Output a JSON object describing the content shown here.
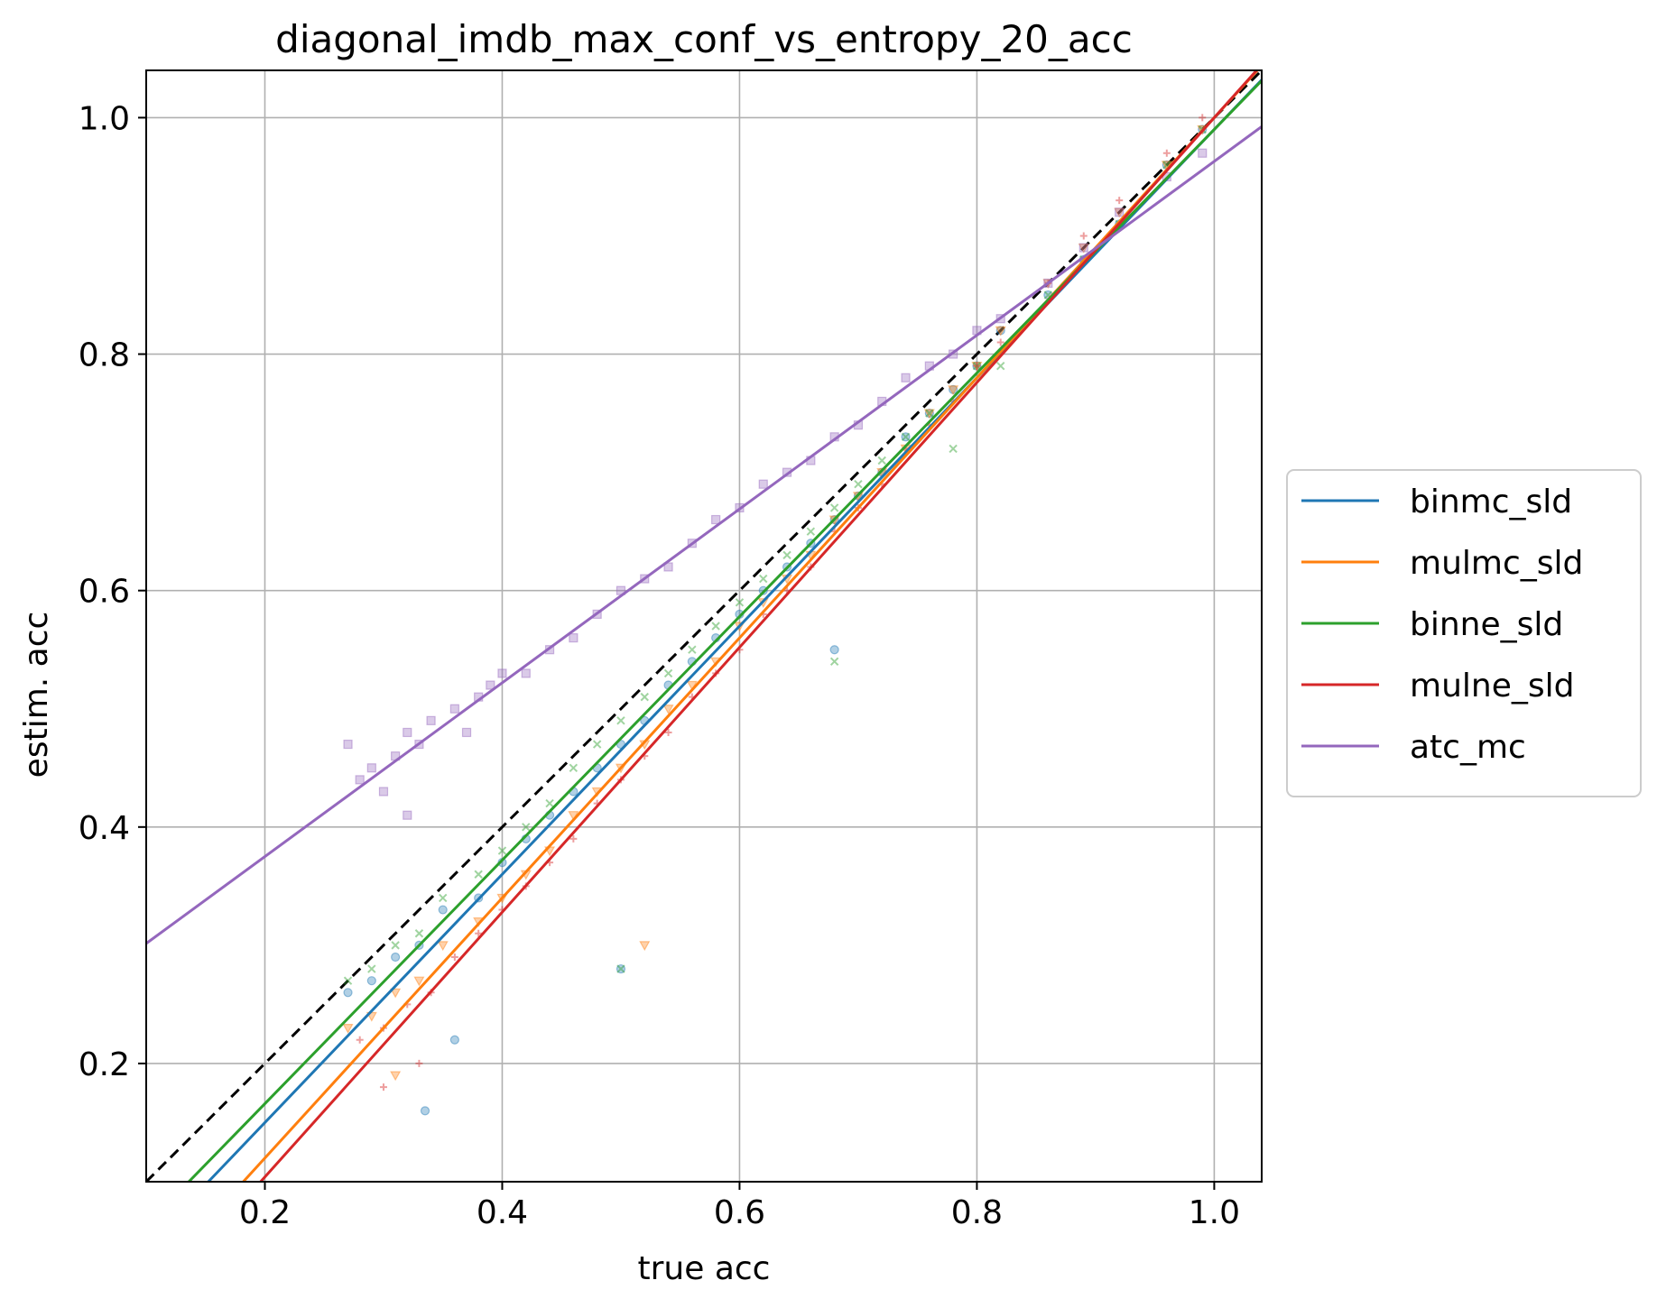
{
  "chart_data": {
    "type": "scatter",
    "title": "diagonal_imdb_max_conf_vs_entropy_20_acc",
    "xlabel": "true acc",
    "ylabel": "estim. acc",
    "xlim": [
      0.1,
      1.04
    ],
    "ylim": [
      0.1,
      1.04
    ],
    "xticks": [
      0.2,
      0.4,
      0.6,
      0.8,
      1.0
    ],
    "yticks": [
      0.2,
      0.4,
      0.6,
      0.8,
      1.0
    ],
    "xtick_labels": [
      "0.2",
      "0.4",
      "0.6",
      "0.8",
      "1.0"
    ],
    "ytick_labels": [
      "0.2",
      "0.4",
      "0.6",
      "0.8",
      "1.0"
    ],
    "grid": true,
    "legend_position": "outside-right",
    "reference_line": {
      "style": "dashed",
      "color": "#000000",
      "slope": 1.0,
      "intercept": 0.0
    },
    "series": [
      {
        "name": "binmc_sld",
        "color": "#1f77b4",
        "marker": "circle",
        "fit": {
          "slope": 1.05,
          "intercept": -0.06
        },
        "points": [
          [
            0.27,
            0.26
          ],
          [
            0.29,
            0.27
          ],
          [
            0.31,
            0.29
          ],
          [
            0.33,
            0.3
          ],
          [
            0.35,
            0.33
          ],
          [
            0.38,
            0.34
          ],
          [
            0.4,
            0.37
          ],
          [
            0.42,
            0.39
          ],
          [
            0.44,
            0.41
          ],
          [
            0.46,
            0.43
          ],
          [
            0.48,
            0.45
          ],
          [
            0.5,
            0.47
          ],
          [
            0.52,
            0.49
          ],
          [
            0.54,
            0.52
          ],
          [
            0.56,
            0.54
          ],
          [
            0.58,
            0.56
          ],
          [
            0.6,
            0.58
          ],
          [
            0.62,
            0.6
          ],
          [
            0.64,
            0.62
          ],
          [
            0.66,
            0.64
          ],
          [
            0.68,
            0.66
          ],
          [
            0.7,
            0.68
          ],
          [
            0.72,
            0.7
          ],
          [
            0.74,
            0.73
          ],
          [
            0.76,
            0.75
          ],
          [
            0.78,
            0.77
          ],
          [
            0.8,
            0.79
          ],
          [
            0.82,
            0.82
          ],
          [
            0.86,
            0.85
          ],
          [
            0.89,
            0.88
          ],
          [
            0.92,
            0.91
          ],
          [
            0.96,
            0.96
          ],
          [
            0.99,
            0.99
          ],
          [
            0.335,
            0.16
          ],
          [
            0.5,
            0.28
          ],
          [
            0.68,
            0.55
          ],
          [
            0.36,
            0.22
          ]
        ]
      },
      {
        "name": "mulmc_sld",
        "color": "#ff7f0e",
        "marker": "triangle",
        "fit": {
          "slope": 1.1,
          "intercept": -0.1
        },
        "points": [
          [
            0.27,
            0.23
          ],
          [
            0.29,
            0.24
          ],
          [
            0.31,
            0.26
          ],
          [
            0.33,
            0.27
          ],
          [
            0.35,
            0.3
          ],
          [
            0.38,
            0.32
          ],
          [
            0.4,
            0.34
          ],
          [
            0.42,
            0.36
          ],
          [
            0.44,
            0.38
          ],
          [
            0.46,
            0.41
          ],
          [
            0.48,
            0.43
          ],
          [
            0.5,
            0.45
          ],
          [
            0.52,
            0.47
          ],
          [
            0.54,
            0.5
          ],
          [
            0.56,
            0.52
          ],
          [
            0.58,
            0.54
          ],
          [
            0.6,
            0.57
          ],
          [
            0.62,
            0.59
          ],
          [
            0.64,
            0.61
          ],
          [
            0.66,
            0.63
          ],
          [
            0.68,
            0.66
          ],
          [
            0.7,
            0.68
          ],
          [
            0.72,
            0.7
          ],
          [
            0.74,
            0.72
          ],
          [
            0.76,
            0.75
          ],
          [
            0.78,
            0.77
          ],
          [
            0.8,
            0.79
          ],
          [
            0.82,
            0.82
          ],
          [
            0.86,
            0.86
          ],
          [
            0.89,
            0.89
          ],
          [
            0.92,
            0.92
          ],
          [
            0.96,
            0.96
          ],
          [
            0.99,
            0.99
          ],
          [
            0.31,
            0.19
          ],
          [
            0.52,
            0.3
          ]
        ]
      },
      {
        "name": "binne_sld",
        "color": "#2ca02c",
        "marker": "x",
        "fit": {
          "slope": 1.03,
          "intercept": -0.04
        },
        "points": [
          [
            0.27,
            0.27
          ],
          [
            0.29,
            0.28
          ],
          [
            0.31,
            0.3
          ],
          [
            0.33,
            0.31
          ],
          [
            0.35,
            0.34
          ],
          [
            0.38,
            0.36
          ],
          [
            0.4,
            0.38
          ],
          [
            0.42,
            0.4
          ],
          [
            0.44,
            0.42
          ],
          [
            0.46,
            0.45
          ],
          [
            0.48,
            0.47
          ],
          [
            0.5,
            0.49
          ],
          [
            0.52,
            0.51
          ],
          [
            0.54,
            0.53
          ],
          [
            0.56,
            0.55
          ],
          [
            0.58,
            0.57
          ],
          [
            0.6,
            0.59
          ],
          [
            0.62,
            0.61
          ],
          [
            0.64,
            0.63
          ],
          [
            0.66,
            0.65
          ],
          [
            0.68,
            0.67
          ],
          [
            0.7,
            0.69
          ],
          [
            0.72,
            0.71
          ],
          [
            0.74,
            0.73
          ],
          [
            0.76,
            0.75
          ],
          [
            0.78,
            0.72
          ],
          [
            0.8,
            0.79
          ],
          [
            0.82,
            0.79
          ],
          [
            0.86,
            0.85
          ],
          [
            0.89,
            0.88
          ],
          [
            0.92,
            0.91
          ],
          [
            0.96,
            0.96
          ],
          [
            0.99,
            0.99
          ],
          [
            0.5,
            0.28
          ],
          [
            0.68,
            0.54
          ]
        ]
      },
      {
        "name": "mulne_sld",
        "color": "#d62728",
        "marker": "plus",
        "fit": {
          "slope": 1.12,
          "intercept": -0.12
        },
        "points": [
          [
            0.28,
            0.22
          ],
          [
            0.3,
            0.23
          ],
          [
            0.32,
            0.25
          ],
          [
            0.34,
            0.26
          ],
          [
            0.36,
            0.29
          ],
          [
            0.38,
            0.31
          ],
          [
            0.4,
            0.33
          ],
          [
            0.42,
            0.35
          ],
          [
            0.44,
            0.37
          ],
          [
            0.46,
            0.39
          ],
          [
            0.48,
            0.42
          ],
          [
            0.5,
            0.44
          ],
          [
            0.52,
            0.46
          ],
          [
            0.54,
            0.48
          ],
          [
            0.56,
            0.51
          ],
          [
            0.58,
            0.53
          ],
          [
            0.6,
            0.55
          ],
          [
            0.62,
            0.58
          ],
          [
            0.64,
            0.6
          ],
          [
            0.66,
            0.62
          ],
          [
            0.68,
            0.65
          ],
          [
            0.7,
            0.67
          ],
          [
            0.72,
            0.69
          ],
          [
            0.74,
            0.72
          ],
          [
            0.76,
            0.74
          ],
          [
            0.78,
            0.76
          ],
          [
            0.8,
            0.79
          ],
          [
            0.82,
            0.81
          ],
          [
            0.86,
            0.86
          ],
          [
            0.89,
            0.9
          ],
          [
            0.92,
            0.93
          ],
          [
            0.96,
            0.97
          ],
          [
            0.99,
            1.0
          ],
          [
            0.3,
            0.18
          ],
          [
            0.33,
            0.2
          ]
        ]
      },
      {
        "name": "atc_mc",
        "color": "#9467bd",
        "marker": "square",
        "fit": {
          "slope": 0.735,
          "intercept": 0.228
        },
        "points": [
          [
            0.27,
            0.47
          ],
          [
            0.28,
            0.44
          ],
          [
            0.29,
            0.45
          ],
          [
            0.3,
            0.43
          ],
          [
            0.31,
            0.46
          ],
          [
            0.32,
            0.48
          ],
          [
            0.33,
            0.47
          ],
          [
            0.34,
            0.49
          ],
          [
            0.36,
            0.5
          ],
          [
            0.37,
            0.48
          ],
          [
            0.38,
            0.51
          ],
          [
            0.39,
            0.52
          ],
          [
            0.4,
            0.53
          ],
          [
            0.42,
            0.53
          ],
          [
            0.44,
            0.55
          ],
          [
            0.46,
            0.56
          ],
          [
            0.48,
            0.58
          ],
          [
            0.5,
            0.6
          ],
          [
            0.52,
            0.61
          ],
          [
            0.54,
            0.62
          ],
          [
            0.56,
            0.64
          ],
          [
            0.58,
            0.66
          ],
          [
            0.6,
            0.67
          ],
          [
            0.62,
            0.69
          ],
          [
            0.64,
            0.7
          ],
          [
            0.66,
            0.71
          ],
          [
            0.68,
            0.73
          ],
          [
            0.7,
            0.74
          ],
          [
            0.72,
            0.76
          ],
          [
            0.74,
            0.78
          ],
          [
            0.76,
            0.79
          ],
          [
            0.78,
            0.8
          ],
          [
            0.8,
            0.82
          ],
          [
            0.82,
            0.83
          ],
          [
            0.86,
            0.86
          ],
          [
            0.89,
            0.89
          ],
          [
            0.92,
            0.92
          ],
          [
            0.96,
            0.95
          ],
          [
            0.99,
            0.97
          ],
          [
            0.32,
            0.41
          ]
        ]
      }
    ]
  }
}
